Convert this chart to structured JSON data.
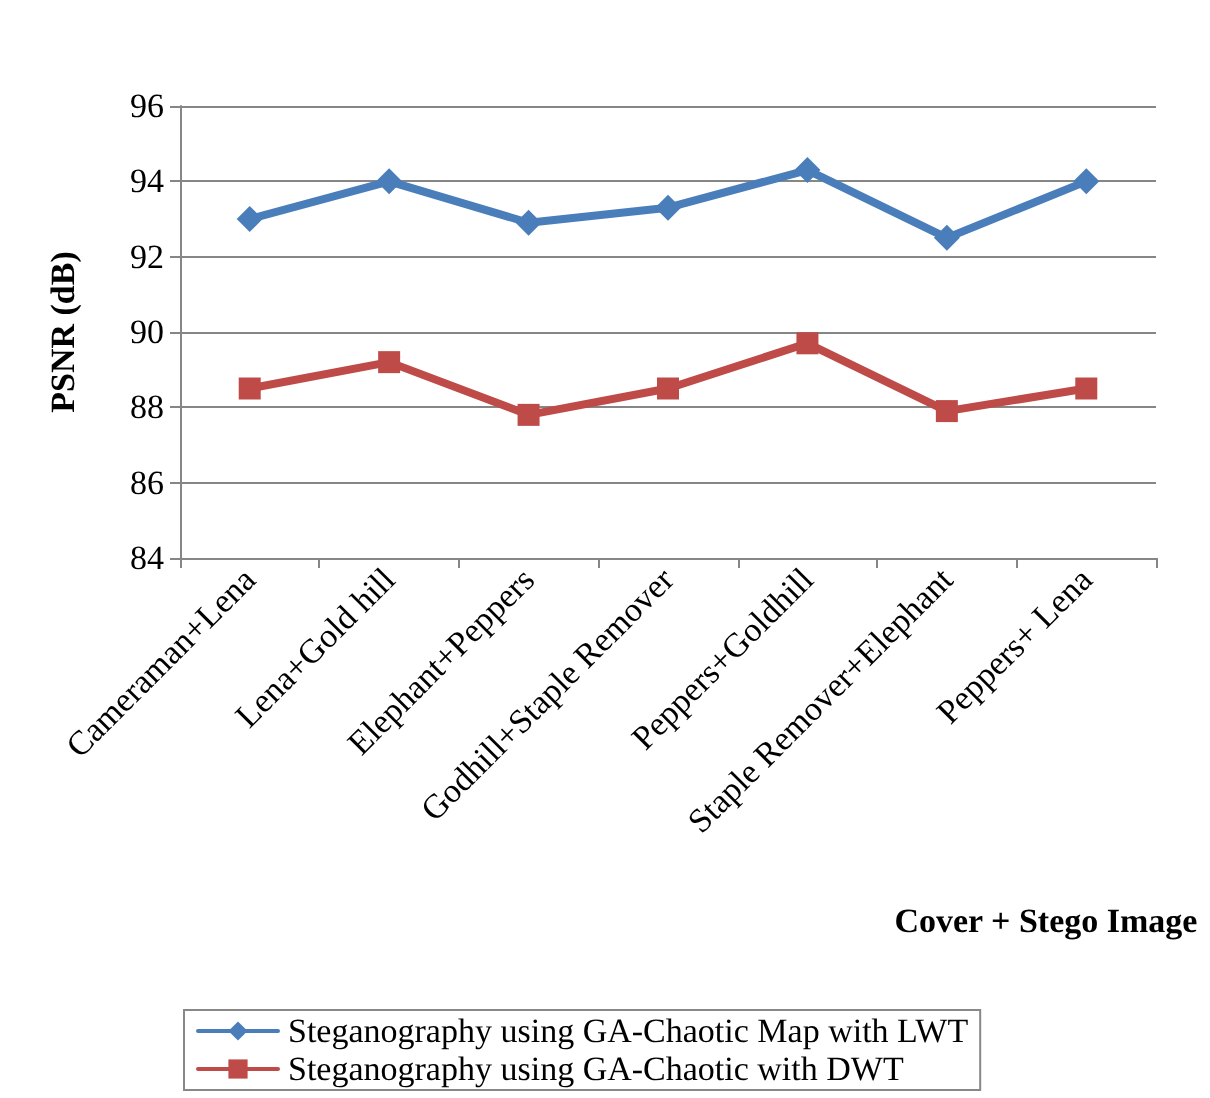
{
  "chart_data": {
    "type": "line",
    "xlabel": "Cover + Stego Image",
    "ylabel": "PSNR (dB)",
    "categories": [
      "Cameraman+Lena",
      "Lena+Gold hill",
      "Elephant+Peppers",
      "Godhill+Staple Remover",
      "Peppers+Goldhill",
      "Staple Remover+Elephant",
      "Peppers+ Lena"
    ],
    "series": [
      {
        "name": "Steganography using GA-Chaotic Map with LWT",
        "color": "#4a7ebb",
        "marker": "diamond",
        "values": [
          93.0,
          94.0,
          92.9,
          93.3,
          94.3,
          92.5,
          94.0
        ]
      },
      {
        "name": "Steganography using GA-Chaotic with DWT",
        "color": "#be4b48",
        "marker": "square",
        "values": [
          88.5,
          89.2,
          87.8,
          88.5,
          89.7,
          87.9,
          88.5
        ]
      }
    ],
    "ylim": [
      84,
      96
    ],
    "yticks": [
      84,
      86,
      88,
      90,
      92,
      94,
      96
    ],
    "grid": "y",
    "legend": "bottom",
    "line_style": "solid"
  }
}
